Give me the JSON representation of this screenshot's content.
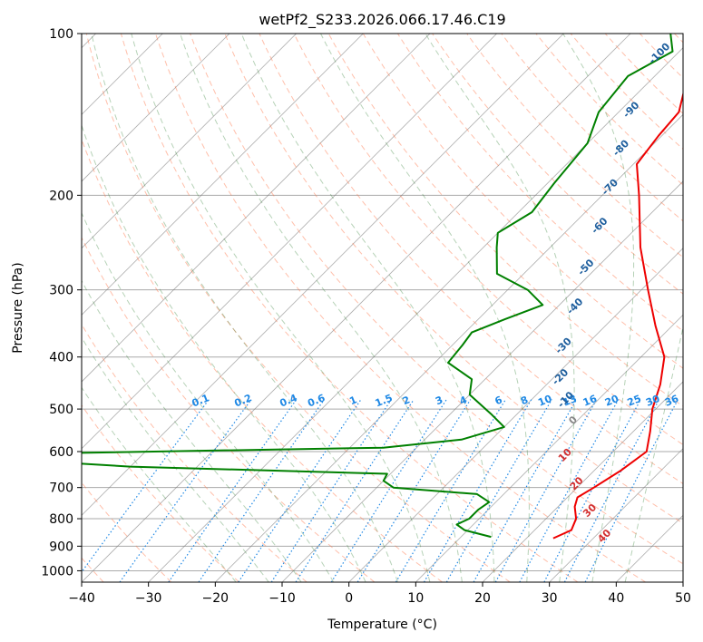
{
  "chart_data": {
    "type": "skew-t",
    "title": "wetPf2_S233.2026.066.17.46.C19",
    "xlabel": "Temperature (°C)",
    "ylabel": "Pressure (hPa)",
    "xlim": [
      -40,
      50
    ],
    "ylim": [
      1050,
      100
    ],
    "x_ticks": [
      -40,
      -30,
      -20,
      -10,
      0,
      10,
      20,
      30,
      40,
      50
    ],
    "x_tick_labels": [
      "−40",
      "−30",
      "−20",
      "−10",
      "0",
      "10",
      "20",
      "30",
      "40",
      "50"
    ],
    "y_ticks": [
      100,
      200,
      300,
      400,
      500,
      600,
      700,
      800,
      900,
      1000
    ],
    "y_tick_labels": [
      "100",
      "200",
      "300",
      "400",
      "500",
      "600",
      "700",
      "800",
      "900",
      "1000"
    ],
    "colors": {
      "temperature": "#ee0000",
      "dewpoint": "#008000",
      "mixing_ratio": "#1e88e5",
      "moist_adiabat": "#2e7d32",
      "dry_adiabat": "#ff7043",
      "isotherm": "#777777",
      "grid": "#aaaaaa"
    },
    "series": [
      {
        "name": "Temperature",
        "points": [
          {
            "p": 870,
            "t": 24
          },
          {
            "p": 840,
            "t": 25.5
          },
          {
            "p": 800,
            "t": 24.5
          },
          {
            "p": 760,
            "t": 22.5
          },
          {
            "p": 730,
            "t": 21.5
          },
          {
            "p": 700,
            "t": 22.5
          },
          {
            "p": 650,
            "t": 24.0
          },
          {
            "p": 600,
            "t": 25.0
          },
          {
            "p": 550,
            "t": 22.5
          },
          {
            "p": 500,
            "t": 19.5
          },
          {
            "p": 450,
            "t": 17.0
          },
          {
            "p": 400,
            "t": 13.5
          },
          {
            "p": 350,
            "t": 7.5
          },
          {
            "p": 300,
            "t": 1.0
          },
          {
            "p": 250,
            "t": -6.5
          },
          {
            "p": 200,
            "t": -14.5
          },
          {
            "p": 175,
            "t": -19.5
          },
          {
            "p": 155,
            "t": -20.5
          },
          {
            "p": 140,
            "t": -21.0
          },
          {
            "p": 125,
            "t": -24.0
          },
          {
            "p": 115,
            "t": -22.5
          },
          {
            "p": 100,
            "t": -21.0
          }
        ]
      },
      {
        "name": "Dewpoint",
        "points": [
          {
            "p": 865,
            "t": 14.5
          },
          {
            "p": 840,
            "t": 9.5
          },
          {
            "p": 820,
            "t": 7.5
          },
          {
            "p": 800,
            "t": 8.5
          },
          {
            "p": 770,
            "t": 8.5
          },
          {
            "p": 745,
            "t": 9.0
          },
          {
            "p": 720,
            "t": 6.0
          },
          {
            "p": 700,
            "t": -7.5
          },
          {
            "p": 680,
            "t": -10.0
          },
          {
            "p": 660,
            "t": -10.5
          },
          {
            "p": 640,
            "t": -50.0
          },
          {
            "p": 620,
            "t": -70.0
          },
          {
            "p": 605,
            "t": -65.0
          },
          {
            "p": 590,
            "t": -15.0
          },
          {
            "p": 570,
            "t": -4.5
          },
          {
            "p": 540,
            "t": 0.0
          },
          {
            "p": 510,
            "t": -4.0
          },
          {
            "p": 470,
            "t": -10.0
          },
          {
            "p": 440,
            "t": -12.0
          },
          {
            "p": 410,
            "t": -18.0
          },
          {
            "p": 380,
            "t": -18.5
          },
          {
            "p": 360,
            "t": -19.0
          },
          {
            "p": 340,
            "t": -16.0
          },
          {
            "p": 320,
            "t": -12.5
          },
          {
            "p": 300,
            "t": -17.0
          },
          {
            "p": 280,
            "t": -24.0
          },
          {
            "p": 250,
            "t": -28.0
          },
          {
            "p": 235,
            "t": -30.0
          },
          {
            "p": 215,
            "t": -28.0
          },
          {
            "p": 190,
            "t": -29.0
          },
          {
            "p": 160,
            "t": -30.0
          },
          {
            "p": 140,
            "t": -33.0
          },
          {
            "p": 120,
            "t": -34.0
          },
          {
            "p": 108,
            "t": -31.0
          },
          {
            "p": 100,
            "t": -34.0
          }
        ]
      }
    ],
    "mixing_ratio_lines": [
      0.1,
      0.2,
      0.4,
      0.6,
      1,
      1.5,
      2,
      3,
      4,
      6,
      8,
      10,
      13,
      16,
      20,
      25,
      30,
      36
    ],
    "mixing_ratio_labels": [
      "0.1",
      "0.2",
      "0.4",
      "0.6",
      "1",
      "1.5",
      "2",
      "3",
      "4",
      "6",
      "8",
      "10",
      "13",
      "16",
      "20",
      "25",
      "30",
      "36"
    ],
    "moist_adiabat_labels": [
      "-100",
      "-90",
      "-80",
      "-70",
      "-60",
      "-50",
      "-40",
      "-30",
      "-20",
      "-10",
      "0"
    ],
    "moist_adiabat_label_pressures": [
      110,
      140,
      165,
      195,
      230,
      275,
      325,
      385,
      440,
      485,
      530
    ],
    "dry_adiabat_labels": [
      "10",
      "20",
      "30",
      "40"
    ],
    "dry_adiabat_label_pressures": [
      615,
      695,
      780,
      870
    ]
  }
}
